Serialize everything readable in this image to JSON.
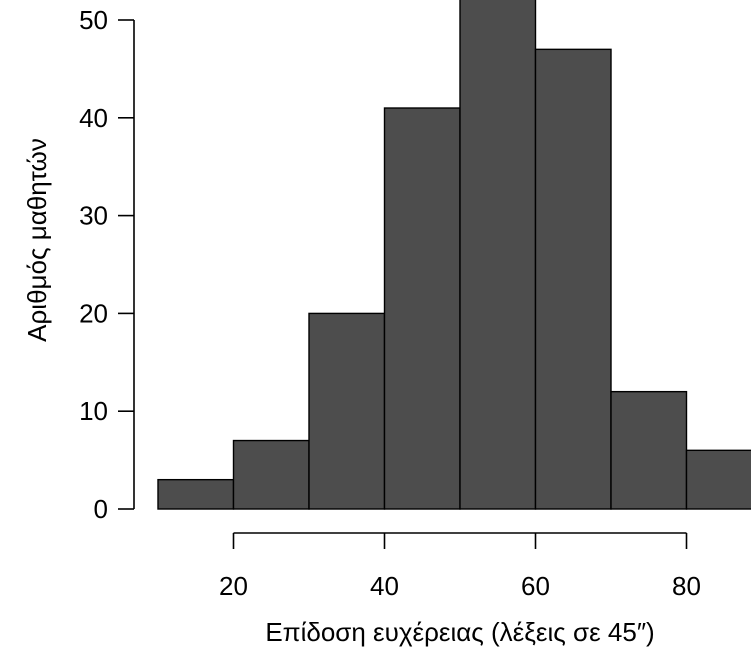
{
  "chart_data": {
    "type": "bar",
    "title": "",
    "xlabel": "Επίδοση ευχέρειας (λέξεις σε 45″)",
    "ylabel": "Αριθμός μαθητών",
    "bins": [
      {
        "x0": 10,
        "x1": 20,
        "value": 3
      },
      {
        "x0": 20,
        "x1": 30,
        "value": 7
      },
      {
        "x0": 30,
        "x1": 40,
        "value": 20
      },
      {
        "x0": 40,
        "x1": 50,
        "value": 41
      },
      {
        "x0": 50,
        "x1": 60,
        "value": 53
      },
      {
        "x0": 60,
        "x1": 70,
        "value": 47
      },
      {
        "x0": 70,
        "x1": 80,
        "value": 12
      },
      {
        "x0": 80,
        "x1": 90,
        "value": 6
      }
    ],
    "x_ticks": [
      20,
      40,
      60,
      80
    ],
    "y_ticks": [
      0,
      10,
      20,
      30,
      40,
      50
    ],
    "x_tick_labels": [
      "20",
      "40",
      "60",
      "80"
    ],
    "y_tick_labels": [
      "0",
      "10",
      "20",
      "30",
      "40",
      "50"
    ],
    "ylim": [
      0,
      55
    ],
    "grid": false,
    "bar_color": "#4d4d4d",
    "edge_color": "#000000"
  }
}
